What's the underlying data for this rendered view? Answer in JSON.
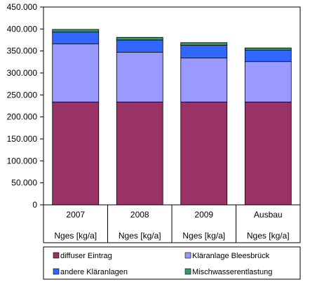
{
  "chart_data": {
    "type": "bar",
    "stacked": true,
    "title": "",
    "xlabel": "",
    "ylabel": "",
    "categories": [
      "2007",
      "2008",
      "2009",
      "Ausbau"
    ],
    "category_sublabels": [
      "Nges [kg/a]",
      "Nges [kg/a]",
      "Nges [kg/a]",
      "Nges [kg/a]"
    ],
    "ylim": [
      0,
      450000
    ],
    "yticks": [
      0,
      50000,
      100000,
      150000,
      200000,
      250000,
      300000,
      350000,
      400000,
      450000
    ],
    "ytick_labels": [
      "0",
      "50.000",
      "100.000",
      "150.000",
      "200.000",
      "250.000",
      "300.000",
      "350.000",
      "400.000",
      "450.000"
    ],
    "grid": false,
    "legend_position": "bottom",
    "series": [
      {
        "name": "diffuser Eintrag",
        "color": "#993366",
        "values": [
          234000,
          234000,
          234000,
          234000
        ]
      },
      {
        "name": "Kläranlage Bleesbrück",
        "color": "#9999ff",
        "values": [
          132000,
          113000,
          100000,
          92000
        ]
      },
      {
        "name": "andere Kläranlagen",
        "color": "#3366ff",
        "values": [
          27000,
          28000,
          29000,
          26000
        ]
      },
      {
        "name": "Mischwasserentlastung",
        "color": "#339966",
        "values": [
          6000,
          6000,
          6000,
          5000
        ]
      }
    ]
  }
}
